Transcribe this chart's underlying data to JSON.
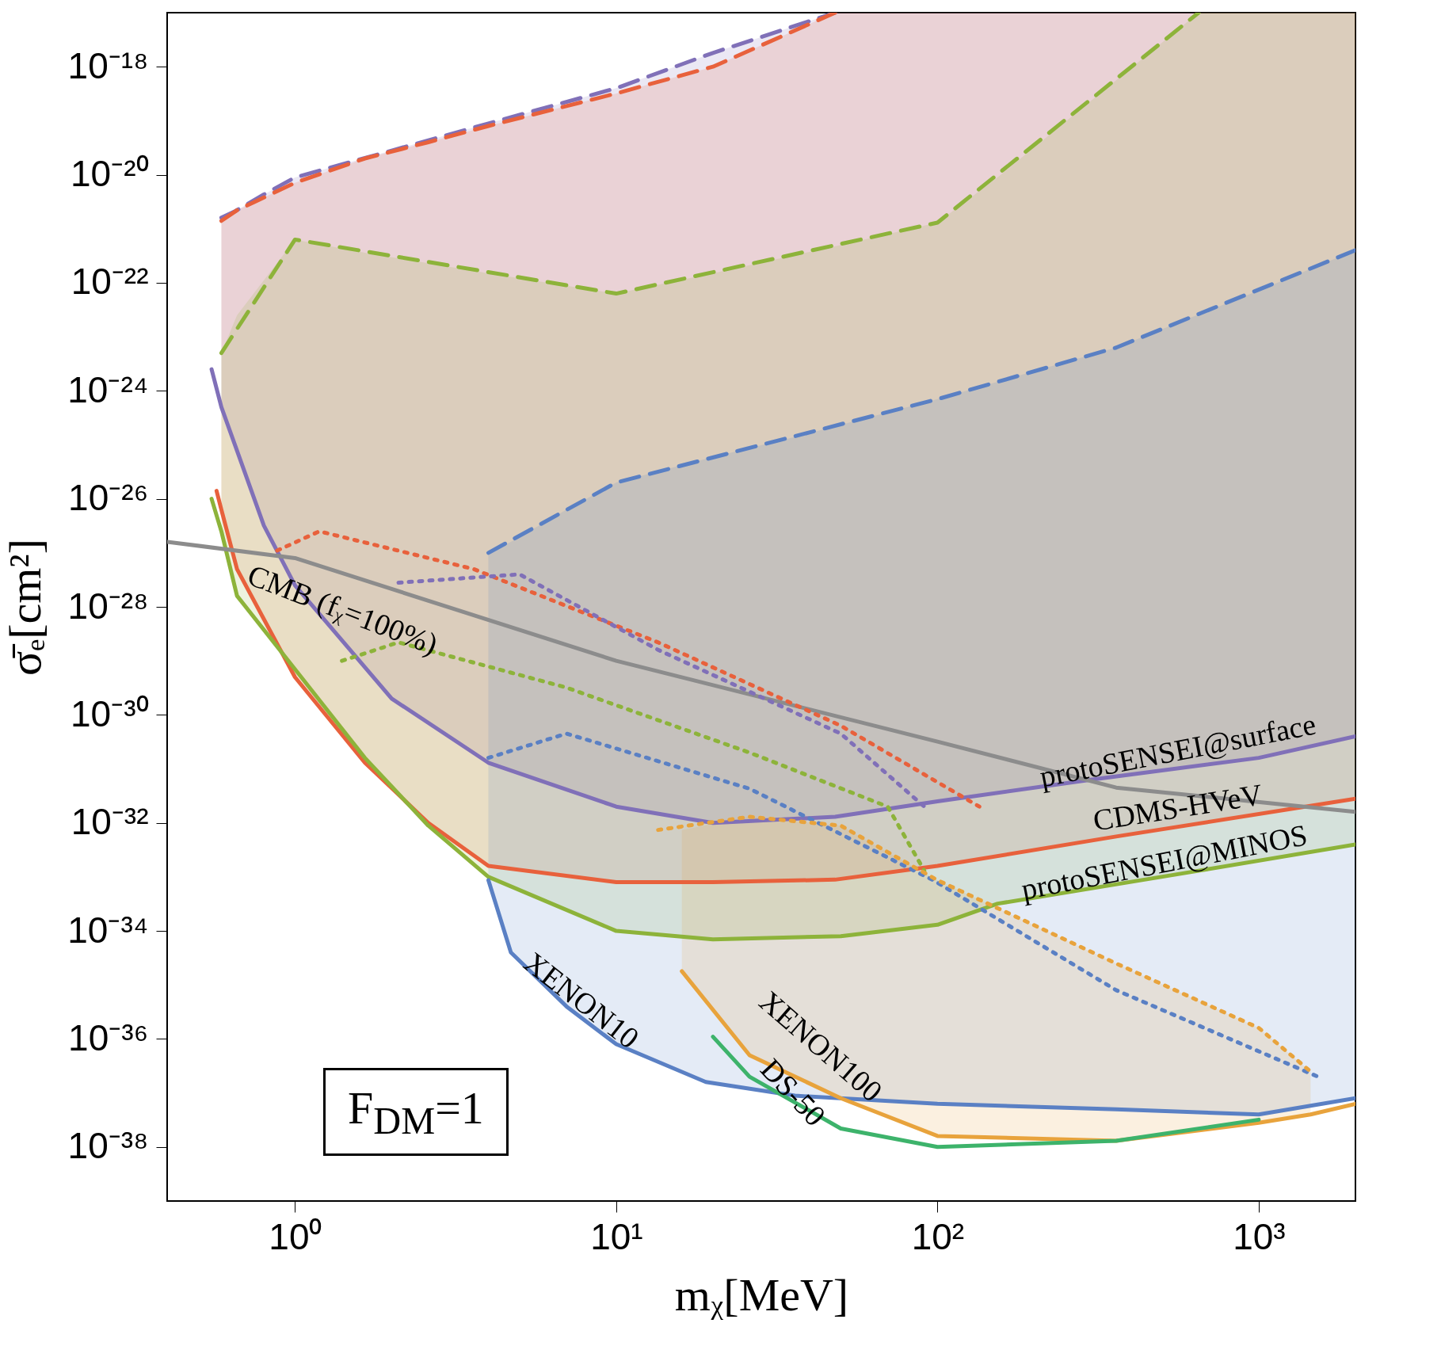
{
  "chart_data": {
    "type": "line",
    "xlabel": "mᵪ[MeV]",
    "ylabel": "σ̄ₑ[cm²]",
    "log": "xy",
    "xlim": [
      0.4,
      2000
    ],
    "ylim": [
      1e-39,
      1e-17
    ],
    "xticks": [
      {
        "value": 1,
        "label": "10⁰"
      },
      {
        "value": 10,
        "label": "10¹"
      },
      {
        "value": 100,
        "label": "10²"
      },
      {
        "value": 1000,
        "label": "10³"
      }
    ],
    "yticks": [
      {
        "value": 1e-38,
        "label": "10⁻³⁸"
      },
      {
        "value": 1e-36,
        "label": "10⁻³⁶"
      },
      {
        "value": 1e-34,
        "label": "10⁻³⁴"
      },
      {
        "value": 1e-32,
        "label": "10⁻³²"
      },
      {
        "value": 1e-30,
        "label": "10⁻³⁰"
      },
      {
        "value": 1e-28,
        "label": "10⁻²⁸"
      },
      {
        "value": 1e-26,
        "label": "10⁻²⁶"
      },
      {
        "value": 1e-24,
        "label": "10⁻²⁴"
      },
      {
        "value": 1e-22,
        "label": "10⁻²²"
      },
      {
        "value": 1e-20,
        "label": "10⁻²⁰"
      },
      {
        "value": 1e-18,
        "label": "10⁻¹⁸"
      }
    ],
    "series": [
      {
        "type": "line",
        "color": "#8070b8",
        "line_style": "solid",
        "x": [
          0.55,
          0.59,
          0.65,
          0.8,
          1,
          2,
          4,
          10,
          20,
          48,
          100,
          300,
          1000,
          2000
        ],
        "values": [
          2.5e-24,
          5e-25,
          1e-25,
          3.2e-27,
          2.5e-28,
          2e-30,
          1.3e-31,
          2e-32,
          1e-32,
          1.3e-32,
          2.5e-32,
          6.3e-32,
          1.6e-31,
          4e-31
        ],
        "lower": [
          null,
          5e-25,
          1e-25,
          3.2e-27,
          2.5e-28,
          2e-30,
          1.3e-31,
          2e-32,
          1e-32,
          1.3e-32,
          2.5e-32,
          6.3e-32,
          1.6e-31,
          4e-31
        ],
        "upper": [
          null,
          1.6e-21,
          2.1e-21,
          4.3e-21,
          8.9e-21,
          2.8e-20,
          8.9e-20,
          4e-19,
          1.8e-18,
          1e-17,
          1e-17,
          1e-17,
          1e-17,
          1e-17
        ]
      },
      {
        "type": "line",
        "color": "#e8613c",
        "line_style": "solid",
        "x": [
          0.57,
          0.59,
          0.66,
          1,
          1.65,
          2.6,
          4,
          10,
          20,
          48,
          100,
          360,
          2000
        ],
        "values": [
          1.4e-26,
          6.3e-27,
          5e-28,
          5e-30,
          1.3e-31,
          1e-32,
          1.6e-33,
          8e-34,
          8e-34,
          8.9e-34,
          1.6e-33,
          5.6e-33,
          2.8e-32
        ],
        "lower": [
          null,
          6.3e-27,
          5e-28,
          5e-30,
          1.3e-31,
          1e-32,
          1.6e-33,
          8e-34,
          8e-34,
          8.9e-34,
          1.6e-33,
          5.6e-33,
          2.8e-32
        ],
        "upper": [
          null,
          1.4e-21,
          2.2e-21,
          7.1e-21,
          2e-20,
          4e-20,
          8e-20,
          3.2e-19,
          1e-18,
          1e-17,
          1e-17,
          1e-17,
          1e-17
        ]
      },
      {
        "type": "line",
        "color": "#8db33a",
        "line_style": "solid",
        "x": [
          0.55,
          0.59,
          0.66,
          1,
          1.65,
          2.6,
          4,
          10,
          20,
          50,
          100,
          154,
          650,
          2000
        ],
        "values": [
          1e-26,
          2.5e-27,
          1.6e-28,
          7e-30,
          1.6e-31,
          8.9e-33,
          1e-33,
          1e-34,
          7e-35,
          8e-35,
          1.3e-34,
          3.2e-34,
          1.3e-33,
          4e-33
        ],
        "lower": [
          null,
          2.5e-27,
          1.6e-28,
          7e-30,
          1.6e-31,
          8.9e-33,
          1e-33,
          1e-34,
          7e-35,
          8e-35,
          1.3e-34,
          3.2e-34,
          1.3e-33,
          4e-33
        ],
        "upper": [
          null,
          5e-24,
          2.5e-23,
          6.3e-22,
          3.6e-22,
          2.3e-22,
          1.5e-22,
          6.3e-23,
          1.5e-22,
          5e-22,
          1.3e-21,
          9e-21,
          1e-17,
          1e-17
        ]
      },
      {
        "type": "line",
        "color": "#5a80c4",
        "line_style": "solid",
        "x": [
          4,
          4.7,
          7,
          10,
          19,
          36,
          100,
          360,
          1000,
          2000
        ],
        "values": [
          8.7e-34,
          4e-35,
          4e-36,
          8e-37,
          1.6e-37,
          8.9e-38,
          6.3e-38,
          5e-38,
          4e-38,
          8e-38
        ],
        "lower": [
          8.7e-34,
          4e-35,
          4e-36,
          8e-37,
          1.6e-37,
          8.9e-38,
          6.3e-38,
          5e-38,
          4e-38,
          8e-38
        ],
        "upper": [
          1e-27,
          1.6e-27,
          6.3e-27,
          2e-26,
          5.5e-26,
          1.4e-25,
          7e-25,
          6.3e-24,
          7.2e-23,
          4e-22
        ]
      },
      {
        "type": "line",
        "color": "#e8a33c",
        "line_style": "solid",
        "x": [
          16,
          26,
          50,
          100,
          360,
          1000,
          1450,
          2000
        ],
        "values": [
          1.8e-35,
          5e-37,
          8e-38,
          1.6e-38,
          1.3e-38,
          2.8e-38,
          4e-38,
          6.3e-38
        ],
        "lower": [
          1.8e-35,
          5e-37,
          8e-38,
          1.6e-38,
          1.3e-38,
          2.8e-38,
          4e-38,
          null
        ],
        "upper": [
          7.4e-33,
          1.3e-32,
          8.9e-33,
          8.7e-34,
          2.5e-35,
          1.6e-36,
          2.5e-37,
          null
        ]
      },
      {
        "type": "line",
        "color": "#3db36b",
        "line_style": "solid",
        "x": [
          20,
          26,
          50,
          100,
          360,
          1000
        ],
        "values": [
          1.1e-36,
          2e-37,
          2.2e-38,
          1e-38,
          1.3e-38,
          3.2e-38
        ]
      },
      {
        "type": "line",
        "color": "#8c8c8c",
        "line_style": "solid",
        "x": [
          0.4,
          1,
          10,
          100,
          360,
          2000
        ],
        "values": [
          1.6e-27,
          8e-28,
          1e-29,
          3.2e-31,
          4.5e-32,
          1.6e-32
        ]
      },
      {
        "type": "line",
        "color": "#8070b8",
        "line_style": "dashed",
        "x": [
          0.59,
          0.65,
          0.8,
          1,
          2,
          4,
          10,
          20,
          48
        ],
        "values": [
          1.6e-21,
          2.1e-21,
          4.3e-21,
          8.9e-21,
          2.8e-20,
          8.9e-20,
          4e-19,
          1.8e-18,
          1e-17
        ]
      },
      {
        "type": "line",
        "color": "#e8613c",
        "line_style": "dashed",
        "x": [
          0.59,
          0.66,
          1,
          1.65,
          2.6,
          4,
          10,
          20,
          48
        ],
        "values": [
          1.4e-21,
          2.2e-21,
          7.1e-21,
          2e-20,
          4e-20,
          8e-20,
          3.2e-19,
          1e-18,
          1e-17
        ]
      },
      {
        "type": "line",
        "color": "#8db33a",
        "line_style": "dashed",
        "x": [
          0.59,
          1,
          10,
          100,
          650
        ],
        "values": [
          5e-24,
          6.3e-22,
          6.3e-23,
          1.3e-21,
          1e-17
        ]
      },
      {
        "type": "line",
        "color": "#5a80c4",
        "line_style": "dashed",
        "x": [
          4,
          10,
          100,
          360,
          2000
        ],
        "values": [
          1e-27,
          2e-26,
          7e-25,
          6.3e-24,
          4e-22
        ]
      },
      {
        "type": "line",
        "color": "#e8613c",
        "line_style": "dotted",
        "x": [
          0.88,
          1.19,
          3.6,
          13.5,
          50,
          135
        ],
        "values": [
          1.1e-27,
          2.5e-27,
          5e-28,
          2.2e-29,
          6.3e-31,
          2e-32
        ]
      },
      {
        "type": "line",
        "color": "#8070b8",
        "line_style": "dotted",
        "x": [
          2.1,
          5,
          13.5,
          50,
          91
        ],
        "values": [
          2.8e-28,
          4e-28,
          1.6e-29,
          4.5e-31,
          2e-32
        ]
      },
      {
        "type": "line",
        "color": "#8db33a",
        "line_style": "dotted",
        "x": [
          1.4,
          2.1,
          7,
          26,
          70,
          91
        ],
        "values": [
          1e-29,
          2.2e-29,
          3.2e-30,
          2e-31,
          2e-32,
          1.3e-33
        ]
      },
      {
        "type": "line",
        "color": "#5a80c4",
        "line_style": "dotted",
        "x": [
          4,
          7,
          26,
          97,
          360,
          1530
        ],
        "values": [
          1.6e-31,
          4.5e-31,
          4.3e-32,
          8.7e-34,
          8e-36,
          2e-37
        ]
      },
      {
        "type": "line",
        "color": "#e8a33c",
        "line_style": "dotted",
        "x": [
          13.5,
          26,
          50,
          100,
          360,
          1000,
          1450
        ],
        "values": [
          7.4e-33,
          1.3e-32,
          8.9e-33,
          8.7e-34,
          2.5e-35,
          1.6e-36,
          2.5e-37
        ]
      }
    ],
    "annotations": [
      "CMB (fᵪ=100%)",
      "protoSENSEI@surface",
      "CDMS-HVeV",
      "protoSENSEI@MINOS",
      "XENON10",
      "XENON100",
      "DS-50",
      "F$_{DM}$=1"
    ]
  }
}
